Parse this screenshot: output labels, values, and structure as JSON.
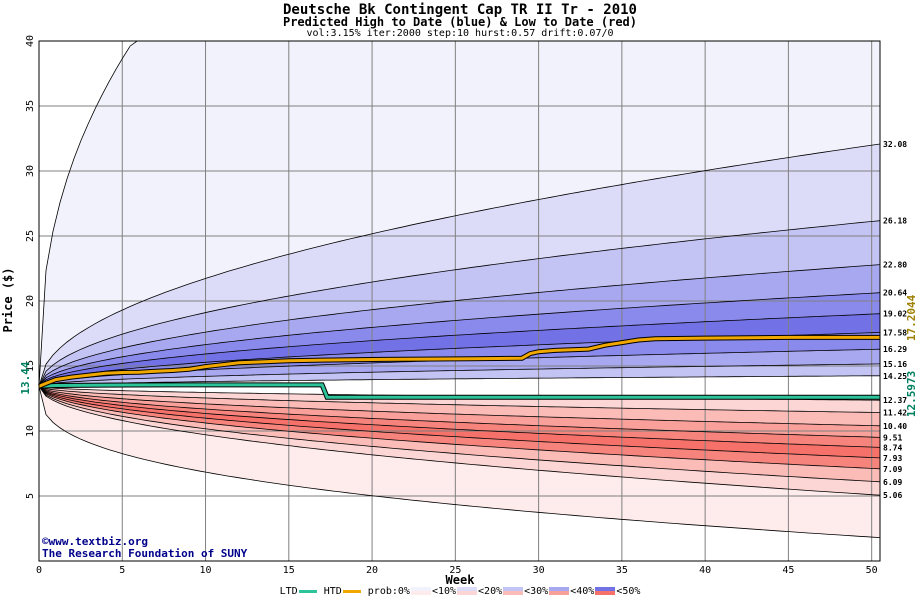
{
  "title": "Deutsche Bk Contingent Cap TR II Tr - 2010",
  "subtitle": "Predicted High to Date (blue) &  Low to Date (red)",
  "params": "vol:3.15% iter:2000 step:10 hurst:0.57 drift:0.07/0",
  "watermark": {
    "url": "©www.textbiz.org",
    "org": "The Research Foundation of SUNY"
  },
  "legend": {
    "ltd_label": "LTD",
    "htd_label": "HTD",
    "prob_label": "prob:0%",
    "bins": [
      "<10%",
      "<20%",
      "<30%",
      "<40%",
      "<50%"
    ]
  },
  "colors": {
    "ltd": "#2ec49a",
    "htd": "#f0a800",
    "blue_bands": [
      "#f2f2fc",
      "#dcdcf8",
      "#c4c4f4",
      "#a8a8f0",
      "#8a8aec",
      "#7272e6"
    ],
    "red_bands": [
      "#fdeceb",
      "#fcd6d4",
      "#fbbcb8",
      "#f9a09a",
      "#f7847c",
      "#f5716a"
    ],
    "current_color": "#008060",
    "htd_value_color": "#a08000"
  },
  "chart_data": {
    "type": "area",
    "xlabel": "Week",
    "ylabel": "Price ($)",
    "xlim": [
      0,
      50.5
    ],
    "ylim": [
      0,
      40
    ],
    "xticks": [
      0,
      5,
      10,
      15,
      20,
      25,
      30,
      35,
      40,
      45,
      50
    ],
    "yticks": [
      5,
      10,
      15,
      20,
      25,
      30,
      35,
      40
    ],
    "grid": true,
    "start_price": 13.44,
    "start_label": "13.44",
    "current_ltd": "12.5973",
    "current_htd": "17.2044",
    "high_bands_end": [
      40.0,
      32.08,
      26.18,
      22.8,
      20.64,
      19.02,
      17.58,
      16.29,
      15.16,
      14.25
    ],
    "high_labels": [
      "32.08",
      "26.18",
      "22.80",
      "20.64",
      "19.02",
      "17.58",
      "16.29",
      "15.16",
      "14.25"
    ],
    "low_bands_end": [
      12.37,
      11.42,
      10.4,
      9.51,
      8.74,
      7.93,
      7.09,
      6.09,
      5.06,
      1.8
    ],
    "low_labels": [
      "12.37",
      "11.42",
      "10.40",
      "9.51",
      "8.74",
      "7.93",
      "7.09",
      "6.09",
      "5.06"
    ],
    "htd_series": {
      "name": "HTD",
      "x": [
        0,
        0.5,
        1,
        2,
        3,
        4,
        5,
        6,
        7,
        8,
        9,
        10,
        11,
        12,
        13,
        15,
        17,
        20,
        23,
        26,
        29,
        29.5,
        30,
        31,
        33,
        34,
        35,
        36,
        37,
        40,
        45,
        50.5
      ],
      "y": [
        13.44,
        13.7,
        13.95,
        14.15,
        14.3,
        14.45,
        14.5,
        14.52,
        14.6,
        14.65,
        14.75,
        14.95,
        15.1,
        15.25,
        15.3,
        15.4,
        15.45,
        15.5,
        15.53,
        15.55,
        15.6,
        15.95,
        16.1,
        16.2,
        16.3,
        16.6,
        16.8,
        17.0,
        17.1,
        17.15,
        17.2,
        17.2
      ]
    },
    "ltd_series": {
      "name": "LTD",
      "x": [
        0,
        1,
        4,
        8,
        12,
        16,
        17,
        17.3,
        20,
        30,
        40,
        50.5
      ],
      "y": [
        13.44,
        13.5,
        13.53,
        13.55,
        13.55,
        13.55,
        13.55,
        12.6,
        12.6,
        12.6,
        12.6,
        12.6
      ]
    }
  }
}
